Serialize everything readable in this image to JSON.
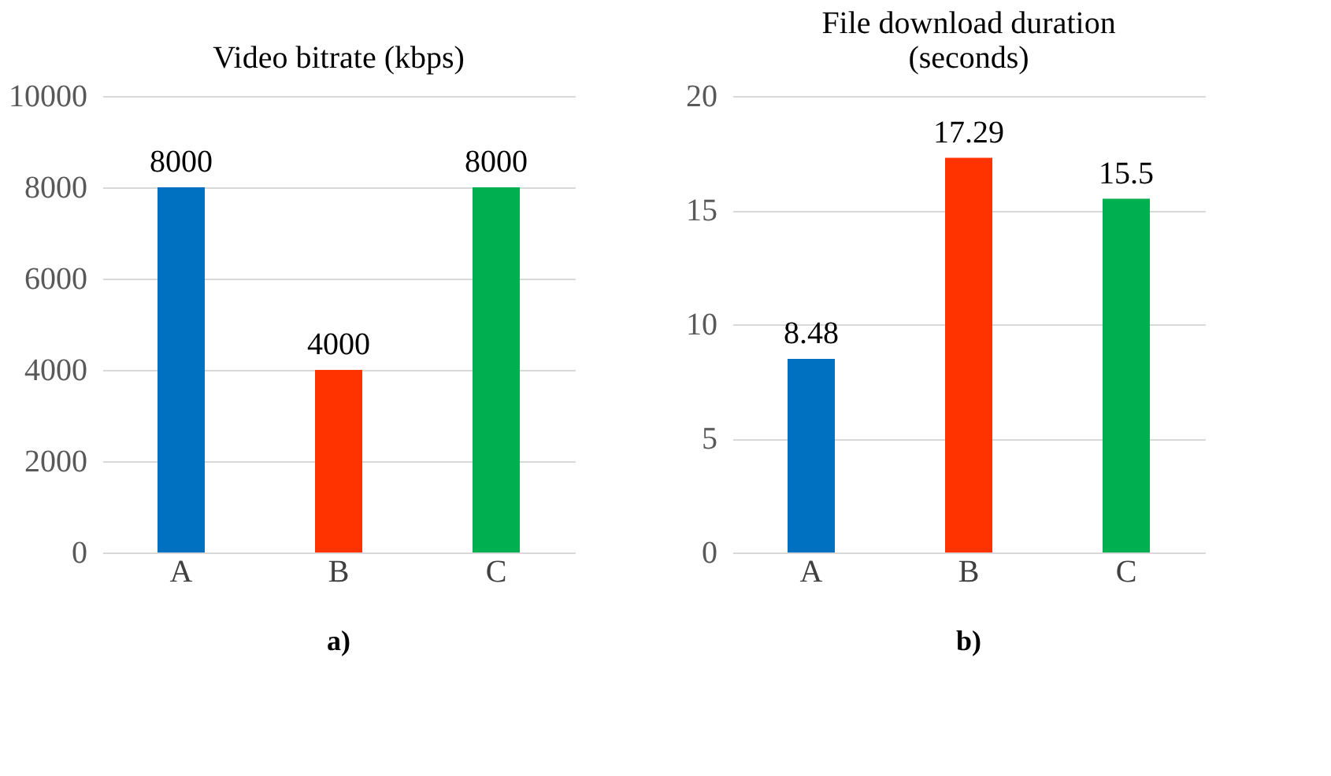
{
  "chart_data": [
    {
      "type": "bar",
      "title": "Video bitrate (kbps)",
      "categories": [
        "A",
        "B",
        "C"
      ],
      "values": [
        8000,
        4000,
        8000
      ],
      "colors": [
        "#0070c0",
        "#ff3300",
        "#00b050"
      ],
      "ylim": [
        0,
        10000
      ],
      "yticks": [
        0,
        2000,
        4000,
        6000,
        8000,
        10000
      ],
      "grid": "y",
      "data_labels": true,
      "annotations": [
        "a)"
      ]
    },
    {
      "type": "bar",
      "title": "File download duration\n(seconds)",
      "categories": [
        "A",
        "B",
        "C"
      ],
      "values": [
        8.48,
        17.29,
        15.5
      ],
      "colors": [
        "#0070c0",
        "#ff3300",
        "#00b050"
      ],
      "ylim": [
        0,
        20
      ],
      "yticks": [
        0,
        5,
        10,
        15,
        20
      ],
      "grid": "y",
      "data_labels": true,
      "annotations": [
        "b)"
      ]
    }
  ]
}
